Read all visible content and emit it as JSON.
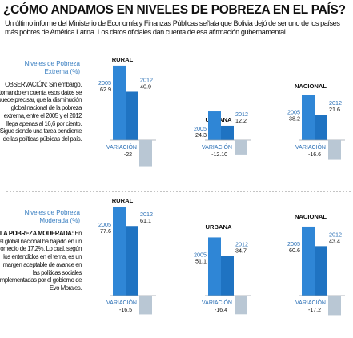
{
  "header": {
    "title": "¿CÓMO ANDAMOS EN NIVELES DE POBREZA EN EL PAÍS?",
    "subtitle": "Un último informe del Ministerio de Economía y Finanzas Públicas señala que Bolivia dejó de ser uno de los países más pobres de América Latina. Los datos oficiales dan cuenta de esa afirmación gubernamental."
  },
  "colors": {
    "bar_2005": "#1f73c2",
    "bar_2012": "#1f73c2",
    "bar_variation": "#b9c7d4",
    "bar_2005_light": "#2f86d6",
    "accent_text": "#3a7fc1"
  },
  "sections": [
    {
      "label_line1": "Niveles de Pobreza",
      "label_line2": "Extrema (%)",
      "note_heading": "OBSERVACIÓN:",
      "note_text": "OBSERVACIÓN: Sin embargo, tomando en cuenta esos datos se puede precisar, que la disminución global nacional de la pobreza extrema, entre el 2005 y el 2012 llega apenas al 16,6 por ciento. Sigue siendo una tarea pendiente de las políticas públicas del país."
    },
    {
      "label_line1": "Niveles de Pobreza",
      "label_line2": "Moderada (%)",
      "note_heading": "LA POBREZA MODERADA:",
      "note_text": "En el global nacional ha bajado en un promedio de 17,2%. Lo cual, según los entendidos en el tema, es un margen aceptable de avance en las políticas sociales implementadas por el gobierno de Evo Morales."
    }
  ],
  "chart_data": [
    {
      "type": "bar",
      "group": "Niveles de Pobreza Extrema (%)",
      "charts": [
        {
          "title": "RURAL",
          "categories": [
            "2005",
            "2012"
          ],
          "values": [
            62.9,
            40.9
          ],
          "variation_label": "VARIACIÓN",
          "variation": -22
        },
        {
          "title": "URBANA",
          "categories": [
            "2005",
            "2012"
          ],
          "values": [
            24.3,
            12.2
          ],
          "variation_label": "VARIACIÓN",
          "variation": -12.1
        },
        {
          "title": "NACIONAL",
          "categories": [
            "2005",
            "2012"
          ],
          "values": [
            38.2,
            21.6
          ],
          "variation_label": "VARIACIÓN",
          "variation": -16.6
        }
      ],
      "variation_display": [
        "-22",
        "-12.10",
        "-16.6"
      ]
    },
    {
      "type": "bar",
      "group": "Niveles de Pobreza Moderada (%)",
      "charts": [
        {
          "title": "RURAL",
          "categories": [
            "2005",
            "2012"
          ],
          "values": [
            77.6,
            61.1
          ],
          "variation_label": "VARIACIÓN",
          "variation": -16.5
        },
        {
          "title": "URBANA",
          "categories": [
            "2005",
            "2012"
          ],
          "values": [
            51.1,
            34.7
          ],
          "variation_label": "VARIACIÓN",
          "variation": -16.4
        },
        {
          "title": "NACIONAL",
          "categories": [
            "2005",
            "2012"
          ],
          "values": [
            60.6,
            43.4
          ],
          "variation_label": "VARIACIÓN",
          "variation": -17.2
        }
      ],
      "variation_display": [
        "-16.5",
        "-16.4",
        "-17.2"
      ]
    }
  ]
}
